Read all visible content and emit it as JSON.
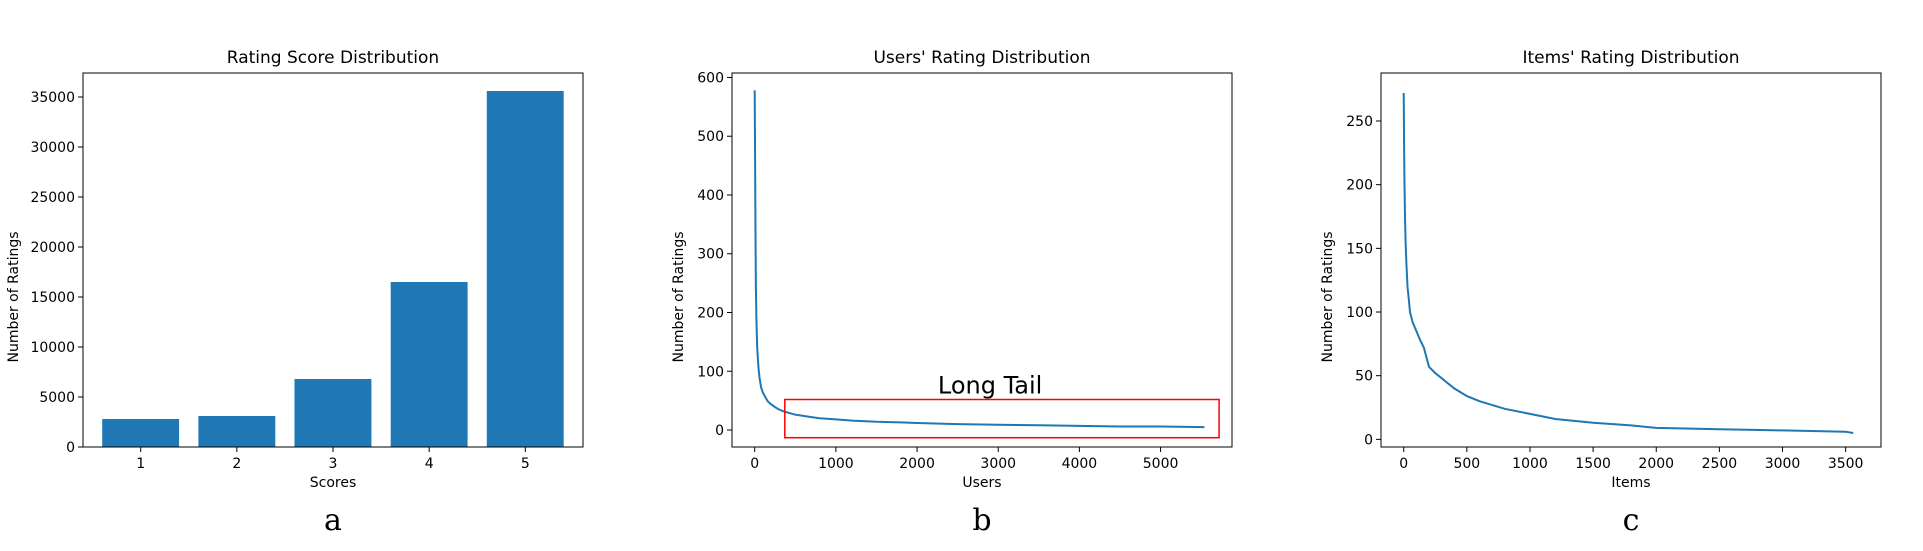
{
  "chart_data": [
    {
      "type": "bar",
      "panel_label": "a",
      "title": "Rating Score Distribution",
      "xlabel": "Scores",
      "ylabel": "Number of Ratings",
      "categories": [
        "1",
        "2",
        "3",
        "4",
        "5"
      ],
      "values": [
        2800,
        3100,
        6800,
        16500,
        35600
      ],
      "ylim": [
        0,
        37400
      ],
      "yticks": [
        0,
        5000,
        10000,
        15000,
        20000,
        25000,
        30000,
        35000
      ],
      "color": "#1f77b4",
      "grid": false
    },
    {
      "type": "line",
      "panel_label": "b",
      "title": "Users' Rating Distribution",
      "xlabel": "Users",
      "ylabel": "Number of Ratings",
      "xlim": [
        -280,
        5880
      ],
      "ylim": [
        -28.9,
        607.6
      ],
      "xticks": [
        0,
        1000,
        2000,
        3000,
        4000,
        5000
      ],
      "yticks": [
        0,
        100,
        200,
        300,
        400,
        500,
        600
      ],
      "series": [
        {
          "x": [
            0,
            5,
            10,
            15,
            20,
            30,
            40,
            50,
            60,
            80,
            100,
            130,
            160,
            200,
            250,
            300,
            350,
            400,
            500,
            600,
            700,
            800,
            1000,
            1200,
            1500,
            1800,
            2000,
            2500,
            3000,
            3500,
            4000,
            4500,
            5000,
            5540
          ],
          "y": [
            578,
            460,
            330,
            240,
            190,
            140,
            118,
            100,
            88,
            72,
            64,
            56,
            49,
            44,
            39,
            35,
            32,
            30,
            26,
            24,
            22,
            20,
            18,
            16,
            14,
            13,
            12,
            10,
            9,
            8,
            7,
            6,
            6,
            5
          ]
        }
      ],
      "color": "#1f77b4",
      "annotations": [
        {
          "text": "Long Tail",
          "x": 2900,
          "y": 62
        }
      ],
      "highlight_box": {
        "x0": 370,
        "x1": 5720,
        "y0": -13,
        "y1": 52,
        "color": "#ff0000"
      },
      "grid": false
    },
    {
      "type": "line",
      "panel_label": "c",
      "title": "Items' Rating Distribution",
      "xlabel": "Items",
      "ylabel": "Number of Ratings",
      "xlim": [
        -180,
        3780
      ],
      "ylim": [
        -6,
        287.7
      ],
      "xticks": [
        0,
        500,
        1000,
        1500,
        2000,
        2500,
        3000,
        3500
      ],
      "yticks": [
        0,
        50,
        100,
        150,
        200,
        250
      ],
      "series": [
        {
          "x": [
            0,
            3,
            6,
            10,
            15,
            20,
            30,
            40,
            50,
            70,
            100,
            130,
            160,
            200,
            250,
            300,
            400,
            500,
            600,
            800,
            1000,
            1200,
            1500,
            1800,
            2000,
            2500,
            3000,
            3500,
            3560
          ],
          "y": [
            272,
            230,
            200,
            175,
            155,
            140,
            120,
            110,
            100,
            92,
            85,
            78,
            72,
            57,
            52,
            48,
            40,
            34,
            30,
            24,
            20,
            16,
            13,
            11,
            9,
            8,
            7,
            6,
            5
          ]
        }
      ],
      "color": "#1f77b4",
      "grid": false
    }
  ]
}
